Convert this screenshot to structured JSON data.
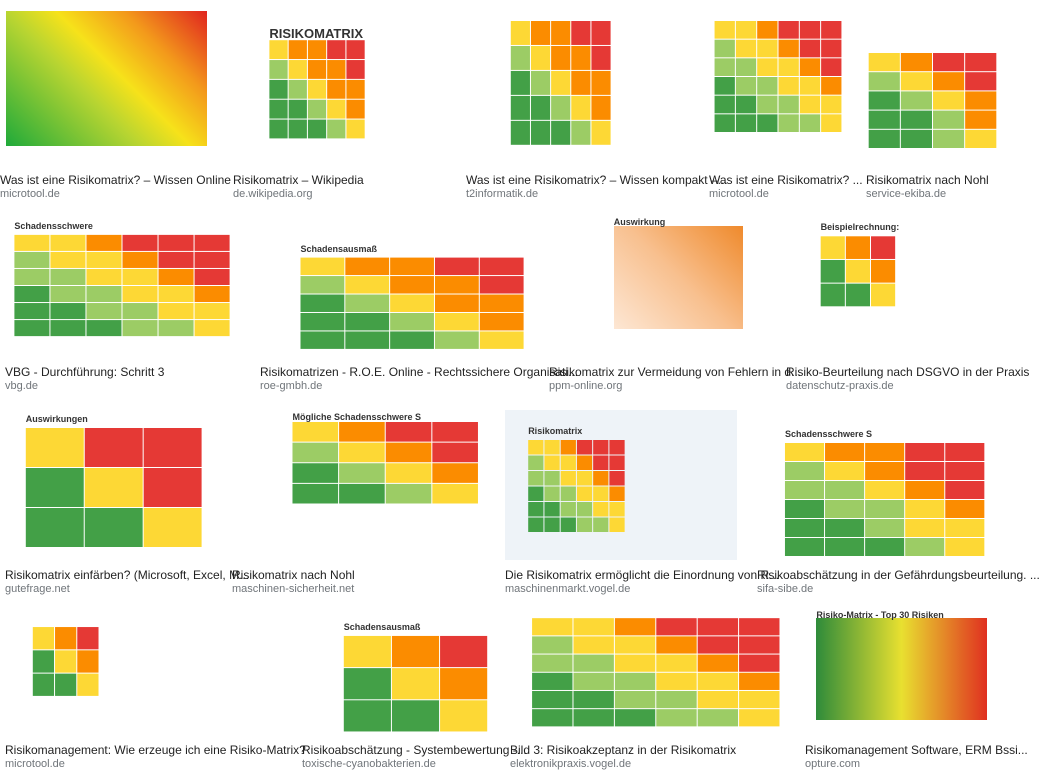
{
  "results": [
    {
      "title": "Was ist eine Risikomatrix? – Wissen Online",
      "source": "microtool.de"
    },
    {
      "title": "Risikomatrix – Wikipedia",
      "source": "de.wikipedia.org",
      "thumb_text": "RISIKOMATRIX"
    },
    {
      "title": "Was ist eine Risikomatrix? – Wissen kompakt –...",
      "source": "t2informatik.de"
    },
    {
      "title": "Was ist eine Risikomatrix? ...",
      "source": "microtool.de"
    },
    {
      "title": "Risikomatrix nach Nohl",
      "source": "service-ekiba.de"
    },
    {
      "title": "VBG - Durchführung: Schritt 3",
      "source": "vbg.de",
      "thumb_text": "Schadensschwere"
    },
    {
      "title": "Risikomatrizen - R.O.E. Online - Rechtssichere Organisati...",
      "source": "roe-gmbh.de",
      "thumb_text": "Schadensausmaß"
    },
    {
      "title": "Risikomatrix zur Vermeidung von Fehlern in d...",
      "source": "ppm-online.org",
      "thumb_text": "Auswirkung"
    },
    {
      "title": "Risiko-Beurteilung nach DSGVO in der Praxis",
      "source": "datenschutz-praxis.de",
      "thumb_text": "Beispielrechnung:"
    },
    {
      "title": "Risikomatrix einfärben? (Microsoft, Excel, M...",
      "source": "gutefrage.net",
      "thumb_text": "Auswirkungen"
    },
    {
      "title": "Risikomatrix nach Nohl",
      "source": "maschinen-sicherheit.net",
      "thumb_text": "Mögliche Schadensschwere S"
    },
    {
      "title": "Die Risikomatrix ermöglicht die Einordnung von R...",
      "source": "maschinenmarkt.vogel.de",
      "thumb_text": "Risikomatrix"
    },
    {
      "title": "Risikoabschätzung in der Gefährdungsbeurteilung. ...",
      "source": "sifa-sibe.de",
      "thumb_text": "Schadensschwere S"
    },
    {
      "title": "Risikomanagement: Wie erzeuge ich eine Risiko-Matrix?",
      "source": "microtool.de"
    },
    {
      "title": "Risikoabschätzung - Systembewertung -...",
      "source": "toxische-cyanobakterien.de",
      "thumb_text": "Schadensausmaß"
    },
    {
      "title": "Bild 3: Risikoakzeptanz in der Risikomatrix",
      "source": "elektronikpraxis.vogel.de"
    },
    {
      "title": "Risikomanagement Software, ERM Bssi...",
      "source": "opture.com",
      "thumb_text": "Risiko-Matrix - Top 30 Risiken"
    }
  ]
}
